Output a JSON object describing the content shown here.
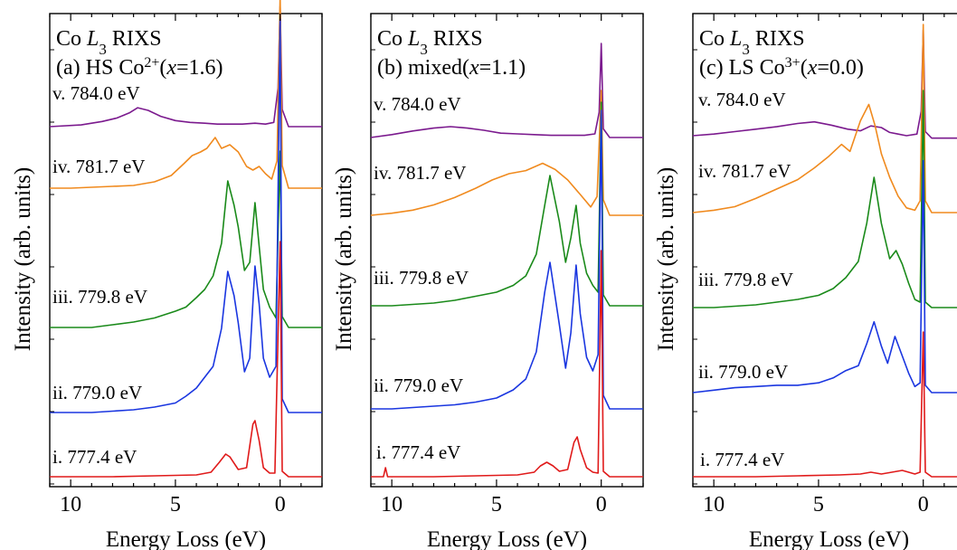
{
  "chart_data": [
    {
      "type": "line",
      "title_lines": [
        "Co L3 RIXS",
        "(a) HS Co2+(x=1.6)"
      ],
      "xlabel": "Energy Loss (eV)",
      "ylabel": "Intensity (arb. units)",
      "xlim": [
        11,
        -2
      ],
      "xticks": [
        10,
        5,
        0
      ],
      "yticks_shown": false,
      "series": [
        {
          "name": "v. 784.0 eV",
          "color": "#7b1a8e",
          "baseline": 0.1,
          "x": [
            11,
            9.5,
            8.5,
            7.8,
            7.2,
            6.8,
            6.3,
            5.7,
            5.0,
            4.3,
            3.6,
            3.0,
            2.4,
            1.8,
            1.2,
            0.7,
            0.3,
            0.1,
            0.0,
            -0.1,
            -0.4,
            -1.0,
            -2.0
          ],
          "y": [
            0.0,
            0.02,
            0.06,
            0.1,
            0.16,
            0.22,
            0.19,
            0.12,
            0.07,
            0.05,
            0.04,
            0.03,
            0.03,
            0.03,
            0.04,
            0.03,
            0.05,
            0.45,
            1.4,
            0.2,
            0.0,
            0.0,
            0.0
          ]
        },
        {
          "name": "iv. 781.7 eV",
          "color": "#f08a1e",
          "baseline": 0.1,
          "x": [
            11,
            10,
            9,
            8,
            7,
            6,
            5.2,
            4.6,
            4.2,
            3.8,
            3.5,
            3.1,
            2.8,
            2.4,
            2.0,
            1.6,
            1.3,
            1.0,
            0.7,
            0.4,
            0.15,
            0.0,
            -0.1,
            -0.4,
            -1.0,
            -2.0
          ],
          "y": [
            0.0,
            0.0,
            0.01,
            0.02,
            0.03,
            0.07,
            0.14,
            0.27,
            0.36,
            0.4,
            0.44,
            0.56,
            0.44,
            0.48,
            0.4,
            0.24,
            0.2,
            0.24,
            0.16,
            0.1,
            0.3,
            2.6,
            0.25,
            0.0,
            0.0,
            0.0
          ]
        },
        {
          "name": "iii. 779.8 eV",
          "color": "#1a8a1a",
          "baseline": 0.1,
          "x": [
            11,
            10,
            9,
            8,
            7,
            6,
            5,
            4.5,
            4.0,
            3.6,
            3.2,
            2.8,
            2.5,
            2.2,
            2.0,
            1.7,
            1.45,
            1.2,
            1.0,
            0.8,
            0.5,
            0.2,
            0.0,
            -0.1,
            -0.4,
            -1.0,
            -2.0
          ],
          "y": [
            0.0,
            0.0,
            0.0,
            0.02,
            0.04,
            0.07,
            0.12,
            0.15,
            0.22,
            0.28,
            0.38,
            0.62,
            1.08,
            0.9,
            0.74,
            0.42,
            0.48,
            0.92,
            0.6,
            0.28,
            0.15,
            0.07,
            1.3,
            0.08,
            0.0,
            0.0,
            0.0
          ]
        },
        {
          "name": "ii. 779.0 eV",
          "color": "#1a36e0",
          "baseline": 0.1,
          "x": [
            11,
            10,
            9,
            8,
            7,
            6,
            5,
            4.5,
            4.0,
            3.6,
            3.2,
            2.8,
            2.5,
            2.2,
            2.0,
            1.7,
            1.45,
            1.2,
            1.0,
            0.8,
            0.5,
            0.2,
            0.0,
            -0.1,
            -0.4,
            -1.0,
            -2.0
          ],
          "y": [
            0.0,
            0.0,
            0.0,
            0.01,
            0.02,
            0.04,
            0.07,
            0.12,
            0.18,
            0.26,
            0.34,
            0.62,
            1.04,
            0.86,
            0.66,
            0.3,
            0.4,
            1.08,
            0.8,
            0.4,
            0.26,
            0.34,
            2.9,
            0.1,
            0.0,
            0.0,
            0.0
          ]
        },
        {
          "name": "i. 777.4 eV",
          "color": "#e01a1a",
          "baseline": 0.1,
          "x": [
            11,
            10,
            8,
            6,
            4,
            3.3,
            2.9,
            2.6,
            2.4,
            2.0,
            1.6,
            1.3,
            1.2,
            1.0,
            0.8,
            0.5,
            0.25,
            0.0,
            -0.1,
            -0.4,
            -1.0,
            -2.0
          ],
          "y": [
            0.0,
            0.0,
            0.0,
            0.01,
            0.02,
            0.05,
            0.16,
            0.25,
            0.22,
            0.08,
            0.1,
            0.58,
            0.62,
            0.4,
            0.1,
            0.04,
            0.04,
            2.6,
            0.06,
            0.0,
            0.0,
            0.0
          ]
        }
      ]
    },
    {
      "type": "line",
      "title_lines": [
        "Co L3 RIXS",
        "(b) mixed(x=1.1)"
      ],
      "xlabel": "Energy Loss (eV)",
      "ylabel": "Intensity (arb. units)",
      "xlim": [
        11,
        -2
      ],
      "xticks": [
        10,
        5,
        0
      ],
      "yticks_shown": false,
      "series": [
        {
          "name": "v. 784.0 eV",
          "color": "#7b1a8e",
          "baseline": 0.1,
          "x": [
            11,
            10,
            9,
            8,
            7.2,
            6.4,
            5.6,
            4.8,
            4.0,
            3.2,
            2.4,
            1.6,
            0.8,
            0.3,
            0.1,
            0.0,
            -0.1,
            -0.4,
            -1.0,
            -2.0
          ],
          "y": [
            0.0,
            0.04,
            0.09,
            0.13,
            0.15,
            0.13,
            0.1,
            0.06,
            0.05,
            0.04,
            0.03,
            0.03,
            0.03,
            0.05,
            0.35,
            1.3,
            0.12,
            0.0,
            0.0,
            0.0
          ]
        },
        {
          "name": "iv. 781.7 eV",
          "color": "#f08a1e",
          "baseline": 0.1,
          "x": [
            11,
            10,
            9,
            8,
            7,
            6,
            5.2,
            4.4,
            3.6,
            2.8,
            2.2,
            1.6,
            1.0,
            0.5,
            0.2,
            0.0,
            -0.1,
            -0.4,
            -1.0,
            -2.0
          ],
          "y": [
            0.0,
            0.02,
            0.05,
            0.1,
            0.17,
            0.26,
            0.34,
            0.4,
            0.43,
            0.5,
            0.44,
            0.34,
            0.2,
            0.08,
            0.18,
            1.2,
            0.15,
            0.0,
            0.0,
            0.0
          ]
        },
        {
          "name": "iii. 779.8 eV",
          "color": "#1a8a1a",
          "baseline": 0.1,
          "x": [
            11,
            10,
            9,
            8,
            7,
            6,
            5,
            4.2,
            3.6,
            3.1,
            2.7,
            2.45,
            2.0,
            1.7,
            1.45,
            1.2,
            1.0,
            0.7,
            0.4,
            0.15,
            0.0,
            -0.1,
            -0.4,
            -1.0,
            -2.0
          ],
          "y": [
            0.0,
            0.0,
            0.01,
            0.02,
            0.04,
            0.07,
            0.1,
            0.15,
            0.22,
            0.38,
            0.74,
            0.96,
            0.62,
            0.32,
            0.5,
            0.74,
            0.46,
            0.24,
            0.15,
            0.1,
            1.5,
            0.08,
            0.0,
            0.0,
            0.0
          ]
        },
        {
          "name": "ii. 779.0 eV",
          "color": "#1a36e0",
          "baseline": 0.1,
          "x": [
            11,
            10,
            9,
            8,
            7,
            6,
            5,
            4.2,
            3.6,
            3.1,
            2.7,
            2.45,
            2.0,
            1.7,
            1.45,
            1.2,
            1.0,
            0.7,
            0.4,
            0.15,
            0.0,
            -0.1,
            -0.4,
            -1.0,
            -2.0
          ],
          "y": [
            0.0,
            0.0,
            0.01,
            0.02,
            0.03,
            0.05,
            0.08,
            0.14,
            0.22,
            0.42,
            0.86,
            1.08,
            0.62,
            0.3,
            0.56,
            1.06,
            0.7,
            0.38,
            0.28,
            0.4,
            2.2,
            0.1,
            0.0,
            0.0,
            0.0
          ]
        },
        {
          "name": "i. 777.4 eV",
          "color": "#e01a1a",
          "baseline": 0.1,
          "x": [
            11,
            10.4,
            10.3,
            10.2,
            10,
            8,
            6,
            4,
            3.2,
            2.9,
            2.6,
            2.3,
            2.0,
            1.6,
            1.3,
            1.15,
            1.0,
            0.7,
            0.4,
            0.15,
            0.0,
            -0.1,
            -0.4,
            -1.0,
            -2.0
          ],
          "y": [
            0.0,
            0.0,
            0.1,
            0.0,
            0.0,
            0.0,
            0.01,
            0.02,
            0.05,
            0.12,
            0.16,
            0.12,
            0.06,
            0.08,
            0.38,
            0.44,
            0.3,
            0.1,
            0.05,
            0.04,
            2.5,
            0.06,
            0.0,
            0.0,
            0.0
          ]
        }
      ]
    },
    {
      "type": "line",
      "title_lines": [
        "Co L3 RIXS",
        "(c) LS Co3+(x=0.0)"
      ],
      "xlabel": "Energy Loss (eV)",
      "ylabel": "Intensity (arb. units)",
      "xlim": [
        11,
        -2
      ],
      "xticks": [
        10,
        5,
        0
      ],
      "yticks_shown": false,
      "series": [
        {
          "name": "v. 784.0 eV",
          "color": "#7b1a8e",
          "baseline": 0.1,
          "x": [
            11,
            10,
            9,
            8,
            7,
            6,
            5.2,
            4.4,
            3.6,
            3.0,
            2.5,
            2.0,
            1.6,
            1.2,
            0.8,
            0.3,
            0.1,
            0.0,
            -0.1,
            -0.4,
            -1.0,
            -2.0
          ],
          "y": [
            0.0,
            0.02,
            0.05,
            0.08,
            0.11,
            0.15,
            0.17,
            0.13,
            0.08,
            0.06,
            0.12,
            0.1,
            0.04,
            0.02,
            0.0,
            0.02,
            0.3,
            1.3,
            0.05,
            -0.03,
            -0.03,
            -0.03
          ]
        },
        {
          "name": "iv. 781.7 eV",
          "color": "#f08a1e",
          "baseline": 0.1,
          "x": [
            11,
            10,
            9,
            8,
            7,
            6,
            5.2,
            4.5,
            3.9,
            3.5,
            3.0,
            2.6,
            2.3,
            2.0,
            1.6,
            1.2,
            0.8,
            0.4,
            0.15,
            0.0,
            -0.1,
            -0.4,
            -1.0,
            -2.0
          ],
          "y": [
            0.0,
            0.02,
            0.05,
            0.12,
            0.2,
            0.28,
            0.38,
            0.48,
            0.58,
            0.52,
            0.78,
            0.92,
            0.74,
            0.5,
            0.3,
            0.14,
            0.04,
            0.02,
            0.1,
            1.6,
            0.1,
            0.0,
            0.0,
            0.0
          ]
        },
        {
          "name": "iii. 779.8 eV",
          "color": "#1a8a1a",
          "baseline": 0.1,
          "x": [
            11,
            10,
            9,
            8,
            7,
            6,
            5,
            4.3,
            3.7,
            3.1,
            2.7,
            2.35,
            2.0,
            1.6,
            1.3,
            1.0,
            0.7,
            0.4,
            0.15,
            0.0,
            -0.1,
            -0.4,
            -1.0,
            -2.0
          ],
          "y": [
            0.0,
            0.0,
            0.01,
            0.02,
            0.04,
            0.06,
            0.09,
            0.14,
            0.22,
            0.34,
            0.62,
            0.96,
            0.62,
            0.36,
            0.42,
            0.32,
            0.18,
            0.06,
            0.04,
            1.6,
            0.04,
            0.0,
            0.0,
            0.0
          ]
        },
        {
          "name": "ii. 779.0 eV",
          "color": "#1a36e0",
          "baseline": 0.1,
          "x": [
            11,
            10,
            9,
            8,
            7,
            6,
            5,
            4.3,
            3.7,
            3.1,
            2.7,
            2.35,
            2.0,
            1.7,
            1.35,
            1.0,
            0.7,
            0.4,
            0.15,
            0.0,
            -0.1,
            -0.4,
            -1.0,
            -2.0
          ],
          "y": [
            0.0,
            0.02,
            0.04,
            0.05,
            0.06,
            0.06,
            0.08,
            0.12,
            0.18,
            0.22,
            0.4,
            0.58,
            0.38,
            0.24,
            0.46,
            0.3,
            0.16,
            0.05,
            0.08,
            1.9,
            0.06,
            0.0,
            0.0,
            0.0
          ]
        },
        {
          "name": "i. 777.4 eV",
          "color": "#e01a1a",
          "baseline": 0.1,
          "x": [
            11,
            10,
            8,
            6,
            4,
            3.0,
            2.5,
            2.0,
            1.5,
            1.0,
            0.7,
            0.4,
            0.15,
            0.0,
            -0.1,
            -0.4,
            -1.0,
            -2.0
          ],
          "y": [
            0.0,
            0.0,
            0.0,
            0.01,
            0.02,
            0.03,
            0.05,
            0.03,
            0.05,
            0.07,
            0.05,
            0.03,
            0.05,
            1.6,
            0.05,
            0.0,
            0.0,
            0.0
          ]
        }
      ]
    }
  ]
}
